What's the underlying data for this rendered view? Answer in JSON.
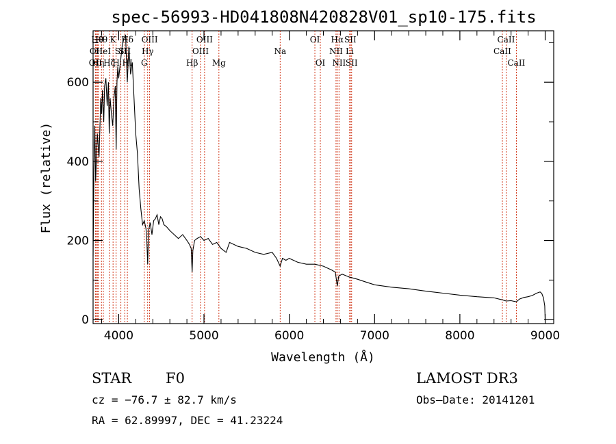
{
  "chart_data": {
    "type": "line",
    "title": "spec-56993-HD041808N420828V01_sp10-175.fits",
    "xlabel": "Wavelength (Å)",
    "ylabel": "Flux (relative)",
    "xlim": [
      3700,
      9100
    ],
    "ylim": [
      -10,
      730
    ],
    "xticks": [
      4000,
      5000,
      6000,
      7000,
      8000,
      9000
    ],
    "yticks": [
      0,
      200,
      400,
      600
    ],
    "xtick_labels": [
      "4000",
      "5000",
      "6000",
      "7000",
      "8000",
      "9000"
    ],
    "ytick_labels": [
      "0",
      "200",
      "400",
      "600"
    ],
    "series": [
      {
        "x": [
          3700,
          3710,
          3720,
          3730,
          3750,
          3770,
          3790,
          3800,
          3810,
          3825,
          3835,
          3850,
          3865,
          3880,
          3889,
          3900,
          3915,
          3930,
          3945,
          3960,
          3970,
          3980,
          3990,
          4000,
          4020,
          4040,
          4060,
          4080,
          4101,
          4120,
          4140,
          4160,
          4180,
          4200,
          4220,
          4240,
          4260,
          4280,
          4300,
          4320,
          4330,
          4340,
          4350,
          4370,
          4390,
          4410,
          4430,
          4450,
          4470,
          4490,
          4510,
          4530,
          4560,
          4600,
          4650,
          4700,
          4750,
          4800,
          4830,
          4850,
          4861,
          4870,
          4890,
          4920,
          4960,
          5000,
          5050,
          5100,
          5150,
          5200,
          5260,
          5300,
          5400,
          5500,
          5600,
          5700,
          5800,
          5850,
          5893,
          5920,
          5960,
          6000,
          6100,
          6200,
          6300,
          6400,
          6500,
          6540,
          6563,
          6580,
          6620,
          6700,
          6800,
          6900,
          7000,
          7200,
          7400,
          7600,
          7800,
          8000,
          8200,
          8400,
          8498,
          8542,
          8600,
          8662,
          8700,
          8750,
          8800,
          8850,
          8900,
          8940,
          8960,
          8980,
          8995,
          9000
        ],
        "y": [
          160,
          380,
          490,
          350,
          470,
          410,
          560,
          520,
          580,
          500,
          590,
          610,
          540,
          600,
          470,
          560,
          520,
          490,
          560,
          590,
          430,
          600,
          640,
          610,
          650,
          690,
          710,
          720,
          600,
          690,
          620,
          650,
          560,
          470,
          420,
          330,
          280,
          240,
          250,
          230,
          200,
          140,
          225,
          245,
          215,
          250,
          255,
          265,
          240,
          260,
          255,
          240,
          235,
          225,
          215,
          205,
          215,
          200,
          190,
          180,
          120,
          175,
          200,
          205,
          210,
          200,
          205,
          190,
          195,
          180,
          170,
          195,
          185,
          180,
          170,
          165,
          170,
          155,
          135,
          155,
          150,
          155,
          145,
          140,
          140,
          135,
          125,
          120,
          85,
          110,
          115,
          108,
          102,
          95,
          88,
          82,
          78,
          72,
          67,
          62,
          58,
          55,
          50,
          47,
          48,
          45,
          52,
          56,
          58,
          61,
          67,
          70,
          66,
          55,
          35,
          0
        ]
      }
    ],
    "line_marks": [
      {
        "w": 3727,
        "label": "OII",
        "row": 2
      },
      {
        "w": 3736,
        "label": "OII",
        "row": 1
      },
      {
        "w": 3750,
        "label": "Hθ",
        "row": 0
      },
      {
        "w": 3760,
        "label": "Hη",
        "row": 2
      },
      {
        "w": 3798,
        "label": "Hθ",
        "row": 0
      },
      {
        "w": 3820,
        "label": "HeI",
        "row": 1
      },
      {
        "w": 3889,
        "label": "Hζ",
        "row": 2
      },
      {
        "w": 3934,
        "label": "K",
        "row": 0
      },
      {
        "w": 3970,
        "label": "H",
        "row": 2
      },
      {
        "w": 4026,
        "label": "SII",
        "row": 1
      },
      {
        "w": 4071,
        "label": "SII",
        "row": 1
      },
      {
        "w": 4102,
        "label": "Hδ",
        "row": 0
      },
      {
        "w": 4102,
        "label": "HI",
        "row": 2
      },
      {
        "w": 4300,
        "label": "G",
        "row": 2
      },
      {
        "w": 4340,
        "label": "Hγ",
        "row": 1
      },
      {
        "w": 4363,
        "label": "OIII",
        "row": 0
      },
      {
        "w": 4861,
        "label": "Hβ",
        "row": 2
      },
      {
        "w": 4959,
        "label": "OIII",
        "row": 1
      },
      {
        "w": 5007,
        "label": "OIII",
        "row": 0
      },
      {
        "w": 5175,
        "label": "Mg",
        "row": 2
      },
      {
        "w": 5893,
        "label": "Na",
        "row": 1
      },
      {
        "w": 6300,
        "label": "OI",
        "row": 0
      },
      {
        "w": 6364,
        "label": "OI",
        "row": 2
      },
      {
        "w": 6548,
        "label": "NII",
        "row": 1
      },
      {
        "w": 6563,
        "label": "Hα",
        "row": 0
      },
      {
        "w": 6583,
        "label": "NII",
        "row": 2
      },
      {
        "w": 6708,
        "label": "Li",
        "row": 1
      },
      {
        "w": 6716,
        "label": "SII",
        "row": 0
      },
      {
        "w": 6731,
        "label": "SII",
        "row": 2
      },
      {
        "w": 8498,
        "label": "CaII",
        "row": 1
      },
      {
        "w": 8542,
        "label": "CaII",
        "row": 0
      },
      {
        "w": 8662,
        "label": "CaII",
        "row": 2
      }
    ]
  },
  "info": {
    "object_class": "STAR",
    "subclass": "F0",
    "survey": "LAMOST DR3",
    "redshift": "cz = −76.7 ± 82.7 km/s",
    "obs_date": "Obs–Date: 20141201",
    "coords": "RA =  62.89997, DEC =  41.23224"
  },
  "colors": {
    "spectrum": "#000000",
    "line_markers": "#cc2200"
  }
}
